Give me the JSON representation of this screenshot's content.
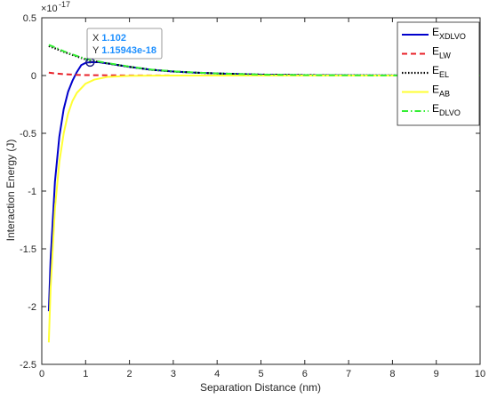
{
  "chart_data": {
    "type": "line",
    "xlabel": "Separation Distance (nm)",
    "ylabel": "Interaction Energy (J)",
    "xlim": [
      0,
      10
    ],
    "ylim": [
      -2.5e-17,
      5e-18
    ],
    "x_ticks": [
      0,
      1,
      2,
      3,
      4,
      5,
      6,
      7,
      8,
      9,
      10
    ],
    "x_tick_labels": [
      "0",
      "1",
      "2",
      "3",
      "4",
      "5",
      "6",
      "7",
      "8",
      "9",
      "10"
    ],
    "y_ticks": [
      5e-18,
      0,
      -5e-18,
      -1e-17,
      -1.5e-17,
      -2e-17,
      -2.5e-17
    ],
    "y_tick_labels": [
      "0.5",
      "0",
      "-0.5",
      "-1",
      "-1.5",
      "-2",
      "-2.5"
    ],
    "y_multiplier": {
      "base": "×10",
      "exponent": "-17"
    },
    "grid": false,
    "legend_position": "top-right",
    "series": [
      {
        "name": "XDLVO",
        "legend_main": "E",
        "legend_sub": "XDLVO",
        "color": "#0000cc",
        "dash": "solid",
        "x": [
          0.16,
          0.2,
          0.3,
          0.4,
          0.5,
          0.6,
          0.7,
          0.8,
          0.9,
          1.0,
          1.102,
          1.3,
          1.5,
          2.0,
          2.5,
          3.0,
          3.5,
          4.0,
          5.0,
          6.0,
          7.0,
          8.0,
          10.0
        ],
        "y": [
          -2.04e-17,
          -1.6e-17,
          -9.2e-18,
          -5.3e-18,
          -2.9e-18,
          -1.4e-18,
          -4.5e-19,
          3e-19,
          9e-19,
          1.1e-18,
          1.15943e-18,
          1.15e-18,
          1.05e-18,
          7.5e-19,
          5e-19,
          3.5e-19,
          2.5e-19,
          1.8e-19,
          8e-20,
          4e-20,
          2e-20,
          1e-20,
          0.0
        ]
      },
      {
        "name": "LW",
        "legend_main": "E",
        "legend_sub": "LW",
        "color": "#e8222a",
        "dash": "dashed",
        "x": [
          0.16,
          0.3,
          0.5,
          0.8,
          1.0,
          1.5,
          2.0,
          3.0,
          4.0,
          6.0,
          8.0,
          10.0
        ],
        "y": [
          2.5e-19,
          1.8e-19,
          1.2e-19,
          6e-20,
          4e-20,
          2e-20,
          1e-20,
          5e-21,
          2e-21,
          0.0,
          0.0,
          0.0
        ]
      },
      {
        "name": "EL",
        "legend_main": "E",
        "legend_sub": "EL",
        "color": "#000000",
        "dash": "dotted",
        "x": [
          0.16,
          0.3,
          0.5,
          0.8,
          1.0,
          1.102,
          1.5,
          2.0,
          2.5,
          3.0,
          3.5,
          4.0,
          5.0,
          6.0,
          7.0,
          8.0,
          10.0
        ],
        "y": [
          2.55e-18,
          2.35e-18,
          2.05e-18,
          1.65e-18,
          1.4e-18,
          1.3e-18,
          1.05e-18,
          7.5e-19,
          5e-19,
          3.5e-19,
          2.5e-19,
          1.8e-19,
          8e-20,
          4e-20,
          2e-20,
          1e-20,
          0.0
        ]
      },
      {
        "name": "AB",
        "legend_main": "E",
        "legend_sub": "AB",
        "color": "#ffff33",
        "dash": "solid",
        "x": [
          0.16,
          0.2,
          0.3,
          0.4,
          0.5,
          0.6,
          0.7,
          0.8,
          1.0,
          1.2,
          1.5,
          2.0,
          2.5,
          3.0,
          4.0,
          5.0,
          10.0
        ],
        "y": [
          -2.31e-17,
          -1.85e-17,
          -1.15e-17,
          -7.5e-18,
          -5e-18,
          -3.3e-18,
          -2.2e-18,
          -1.5e-18,
          -7e-19,
          -3.5e-19,
          -1.2e-19,
          -3e-20,
          -1e-20,
          0.0,
          0.0,
          0.0,
          0.0
        ]
      },
      {
        "name": "DLVO",
        "legend_main": "E",
        "legend_sub": "DLVO",
        "color": "#33ee33",
        "dash": "dashdot",
        "x": [
          0.16,
          0.3,
          0.5,
          0.8,
          1.0,
          1.102,
          1.5,
          2.0,
          2.5,
          3.0,
          3.5,
          4.0,
          5.0,
          6.0,
          7.0,
          8.0,
          10.0
        ],
        "y": [
          2.65e-18,
          2.45e-18,
          2.1e-18,
          1.7e-18,
          1.45e-18,
          1.35e-18,
          1.08e-18,
          7.7e-19,
          5.1e-19,
          3.6e-19,
          2.6e-19,
          1.8e-19,
          8e-20,
          4e-20,
          2e-20,
          1e-20,
          0.0
        ]
      }
    ],
    "datatip": {
      "x": 1.102,
      "y": 1.15943e-18,
      "x_prefix": "X ",
      "y_prefix": "Y ",
      "x_text": "1.102",
      "y_text": "1.15943e-18"
    }
  }
}
